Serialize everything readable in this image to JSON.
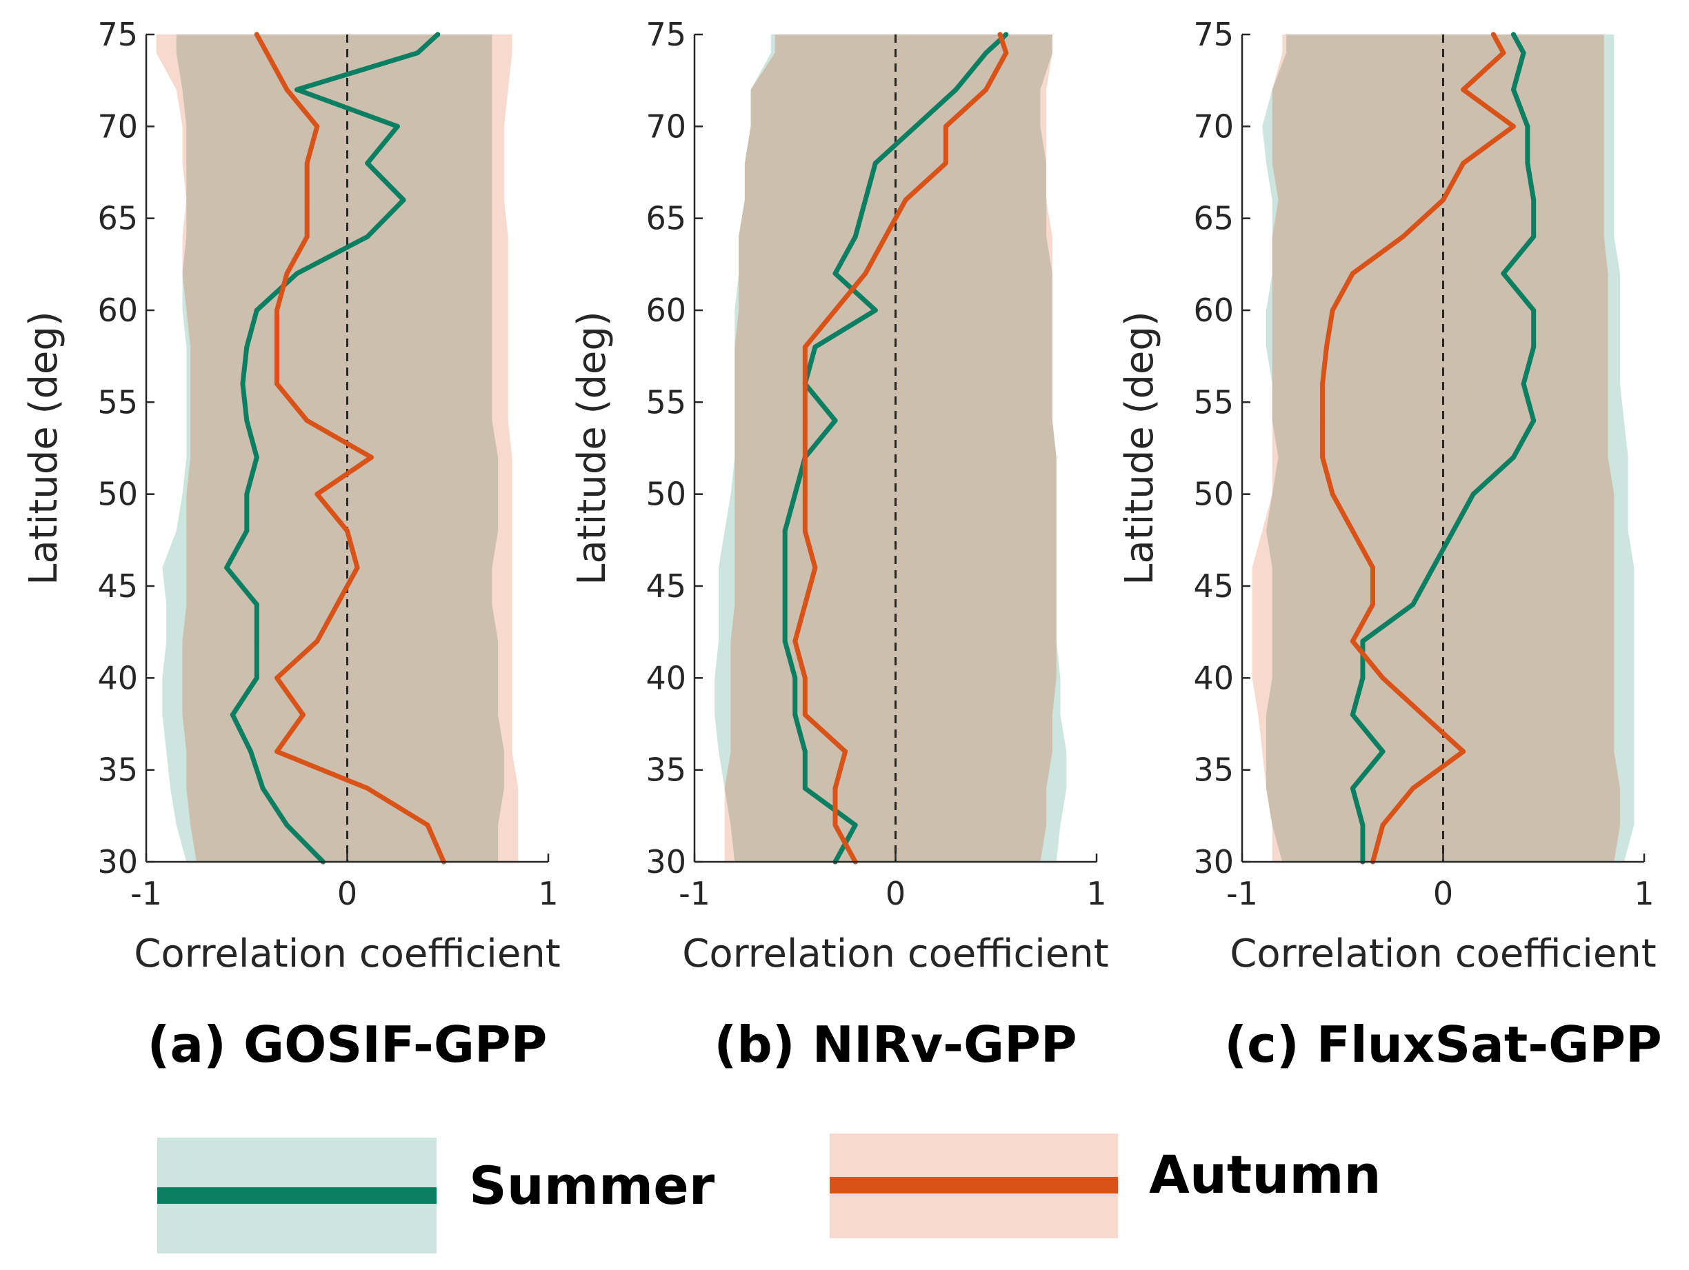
{
  "colors": {
    "summer_line": "#0a7f62",
    "summer_band": "#cde5df",
    "autumn_line": "#d95319",
    "autumn_band": "#f7d9cd",
    "overlap": "#cdbfae",
    "axis": "#262626"
  },
  "legend": {
    "summer_label": "Summer",
    "autumn_label": "Autumn"
  },
  "chart_data": [
    {
      "type": "line",
      "panel_title": "(a) GOSIF-GPP",
      "xlabel": "Correlation coefficient",
      "ylabel": "Latitude (deg)",
      "xlim": [
        -1,
        1
      ],
      "ylim": [
        30,
        75
      ],
      "xticks": [
        -1,
        0,
        1
      ],
      "xtick_labels": [
        "-1",
        "0",
        "1"
      ],
      "yticks": [
        30,
        35,
        40,
        45,
        50,
        55,
        60,
        65,
        70,
        75
      ],
      "ytick_labels": [
        "30",
        "35",
        "40",
        "45",
        "50",
        "55",
        "60",
        "65",
        "70",
        "75"
      ],
      "zero_line": 0,
      "latitudes": [
        30,
        32,
        34,
        36,
        38,
        40,
        42,
        44,
        46,
        48,
        50,
        52,
        54,
        56,
        58,
        60,
        62,
        64,
        66,
        68,
        70,
        72,
        74,
        75
      ],
      "series": [
        {
          "name": "Summer",
          "values": [
            -0.12,
            -0.3,
            -0.42,
            -0.48,
            -0.57,
            -0.45,
            -0.45,
            -0.45,
            -0.6,
            -0.5,
            -0.5,
            -0.45,
            -0.5,
            -0.52,
            -0.5,
            -0.45,
            -0.25,
            0.1,
            0.28,
            0.1,
            0.25,
            -0.25,
            0.35,
            0.45
          ],
          "band_low": [
            -0.8,
            -0.85,
            -0.88,
            -0.9,
            -0.92,
            -0.92,
            -0.9,
            -0.9,
            -0.92,
            -0.85,
            -0.82,
            -0.8,
            -0.8,
            -0.8,
            -0.8,
            -0.82,
            -0.82,
            -0.8,
            -0.8,
            -0.8,
            -0.8,
            -0.82,
            -0.85,
            -0.85
          ],
          "band_high": [
            0.75,
            0.75,
            0.78,
            0.78,
            0.75,
            0.75,
            0.75,
            0.72,
            0.72,
            0.75,
            0.75,
            0.75,
            0.72,
            0.72,
            0.72,
            0.72,
            0.72,
            0.72,
            0.72,
            0.72,
            0.72,
            0.72,
            0.72,
            0.72
          ]
        },
        {
          "name": "Autumn",
          "values": [
            0.48,
            0.4,
            0.1,
            -0.35,
            -0.22,
            -0.35,
            -0.15,
            -0.05,
            0.05,
            0.0,
            -0.15,
            0.12,
            -0.2,
            -0.35,
            -0.35,
            -0.35,
            -0.3,
            -0.2,
            -0.2,
            -0.2,
            -0.15,
            -0.3,
            -0.4,
            -0.45
          ],
          "band_low": [
            -0.75,
            -0.78,
            -0.8,
            -0.8,
            -0.82,
            -0.82,
            -0.82,
            -0.8,
            -0.8,
            -0.8,
            -0.8,
            -0.78,
            -0.78,
            -0.78,
            -0.78,
            -0.8,
            -0.82,
            -0.82,
            -0.8,
            -0.82,
            -0.82,
            -0.85,
            -0.95,
            -0.95
          ],
          "band_high": [
            0.85,
            0.85,
            0.85,
            0.82,
            0.82,
            0.82,
            0.82,
            0.82,
            0.82,
            0.82,
            0.82,
            0.82,
            0.8,
            0.8,
            0.8,
            0.8,
            0.8,
            0.8,
            0.78,
            0.78,
            0.78,
            0.8,
            0.82,
            0.82
          ]
        }
      ]
    },
    {
      "type": "line",
      "panel_title": "(b) NIRv-GPP",
      "xlabel": "Correlation coefficient",
      "ylabel": "Latitude (deg)",
      "xlim": [
        -1,
        1
      ],
      "ylim": [
        30,
        75
      ],
      "xticks": [
        -1,
        0,
        1
      ],
      "xtick_labels": [
        "-1",
        "0",
        "1"
      ],
      "yticks": [
        30,
        35,
        40,
        45,
        50,
        55,
        60,
        65,
        70,
        75
      ],
      "ytick_labels": [
        "30",
        "35",
        "40",
        "45",
        "50",
        "55",
        "60",
        "65",
        "70",
        "75"
      ],
      "zero_line": 0,
      "latitudes": [
        30,
        32,
        34,
        36,
        38,
        40,
        42,
        44,
        46,
        48,
        50,
        52,
        54,
        56,
        58,
        60,
        62,
        64,
        66,
        68,
        70,
        72,
        74,
        75
      ],
      "series": [
        {
          "name": "Summer",
          "values": [
            -0.3,
            -0.2,
            -0.45,
            -0.45,
            -0.5,
            -0.5,
            -0.55,
            -0.55,
            -0.55,
            -0.55,
            -0.5,
            -0.45,
            -0.3,
            -0.45,
            -0.4,
            -0.1,
            -0.3,
            -0.2,
            -0.15,
            -0.1,
            0.1,
            0.3,
            0.45,
            0.55
          ],
          "band_low": [
            -0.8,
            -0.82,
            -0.85,
            -0.88,
            -0.9,
            -0.9,
            -0.88,
            -0.88,
            -0.88,
            -0.85,
            -0.82,
            -0.8,
            -0.8,
            -0.8,
            -0.8,
            -0.8,
            -0.78,
            -0.78,
            -0.75,
            -0.75,
            -0.72,
            -0.72,
            -0.62,
            -0.62
          ],
          "band_high": [
            0.8,
            0.82,
            0.85,
            0.85,
            0.82,
            0.82,
            0.8,
            0.8,
            0.8,
            0.8,
            0.8,
            0.8,
            0.78,
            0.78,
            0.78,
            0.78,
            0.78,
            0.75,
            0.75,
            0.75,
            0.72,
            0.72,
            0.78,
            0.78
          ]
        },
        {
          "name": "Autumn",
          "values": [
            -0.2,
            -0.3,
            -0.3,
            -0.25,
            -0.45,
            -0.45,
            -0.5,
            -0.45,
            -0.4,
            -0.45,
            -0.45,
            -0.45,
            -0.45,
            -0.45,
            -0.45,
            -0.3,
            -0.15,
            -0.05,
            0.05,
            0.25,
            0.25,
            0.45,
            0.55,
            0.52
          ],
          "band_low": [
            -0.85,
            -0.85,
            -0.85,
            -0.82,
            -0.82,
            -0.82,
            -0.82,
            -0.8,
            -0.8,
            -0.8,
            -0.8,
            -0.8,
            -0.8,
            -0.8,
            -0.8,
            -0.78,
            -0.78,
            -0.78,
            -0.75,
            -0.75,
            -0.72,
            -0.72,
            -0.6,
            -0.6
          ],
          "band_high": [
            0.72,
            0.75,
            0.75,
            0.78,
            0.78,
            0.8,
            0.8,
            0.8,
            0.8,
            0.8,
            0.8,
            0.8,
            0.78,
            0.78,
            0.78,
            0.78,
            0.78,
            0.78,
            0.75,
            0.75,
            0.75,
            0.75,
            0.78,
            0.78
          ]
        }
      ]
    },
    {
      "type": "line",
      "panel_title": "(c) FluxSat-GPP",
      "xlabel": "Correlation coefficient",
      "ylabel": "Latitude (deg)",
      "xlim": [
        -1,
        1
      ],
      "ylim": [
        30,
        75
      ],
      "xticks": [
        -1,
        0,
        1
      ],
      "xtick_labels": [
        "-1",
        "0",
        "1"
      ],
      "yticks": [
        30,
        35,
        40,
        45,
        50,
        55,
        60,
        65,
        70,
        75
      ],
      "ytick_labels": [
        "30",
        "35",
        "40",
        "45",
        "50",
        "55",
        "60",
        "65",
        "70",
        "75"
      ],
      "zero_line": 0,
      "latitudes": [
        30,
        32,
        34,
        36,
        38,
        40,
        42,
        44,
        46,
        48,
        50,
        52,
        54,
        56,
        58,
        60,
        62,
        64,
        66,
        68,
        70,
        72,
        74,
        75
      ],
      "series": [
        {
          "name": "Summer",
          "values": [
            -0.4,
            -0.4,
            -0.45,
            -0.3,
            -0.45,
            -0.4,
            -0.4,
            -0.15,
            -0.05,
            0.05,
            0.15,
            0.35,
            0.45,
            0.4,
            0.45,
            0.45,
            0.3,
            0.45,
            0.45,
            0.42,
            0.42,
            0.35,
            0.4,
            0.35
          ],
          "band_low": [
            -0.8,
            -0.85,
            -0.88,
            -0.88,
            -0.88,
            -0.85,
            -0.85,
            -0.85,
            -0.85,
            -0.88,
            -0.85,
            -0.82,
            -0.85,
            -0.85,
            -0.88,
            -0.88,
            -0.85,
            -0.85,
            -0.85,
            -0.88,
            -0.9,
            -0.85,
            -0.78,
            -0.78
          ],
          "band_high": [
            0.9,
            0.95,
            0.95,
            0.95,
            0.95,
            0.95,
            0.95,
            0.95,
            0.95,
            0.92,
            0.92,
            0.92,
            0.9,
            0.88,
            0.88,
            0.88,
            0.88,
            0.85,
            0.85,
            0.85,
            0.85,
            0.85,
            0.85,
            0.85
          ]
        },
        {
          "name": "Autumn",
          "values": [
            -0.35,
            -0.3,
            -0.15,
            0.1,
            -0.1,
            -0.3,
            -0.45,
            -0.35,
            -0.35,
            -0.45,
            -0.55,
            -0.6,
            -0.6,
            -0.6,
            -0.58,
            -0.55,
            -0.45,
            -0.2,
            0.0,
            0.1,
            0.35,
            0.1,
            0.3,
            0.25
          ],
          "band_low": [
            -0.85,
            -0.85,
            -0.88,
            -0.9,
            -0.92,
            -0.95,
            -0.95,
            -0.95,
            -0.95,
            -0.9,
            -0.85,
            -0.85,
            -0.85,
            -0.85,
            -0.85,
            -0.85,
            -0.85,
            -0.85,
            -0.82,
            -0.85,
            -0.85,
            -0.85,
            -0.8,
            -0.8
          ],
          "band_high": [
            0.85,
            0.88,
            0.88,
            0.85,
            0.85,
            0.85,
            0.85,
            0.85,
            0.85,
            0.85,
            0.85,
            0.82,
            0.82,
            0.82,
            0.82,
            0.82,
            0.82,
            0.8,
            0.8,
            0.8,
            0.8,
            0.8,
            0.8,
            0.8
          ]
        }
      ]
    }
  ]
}
